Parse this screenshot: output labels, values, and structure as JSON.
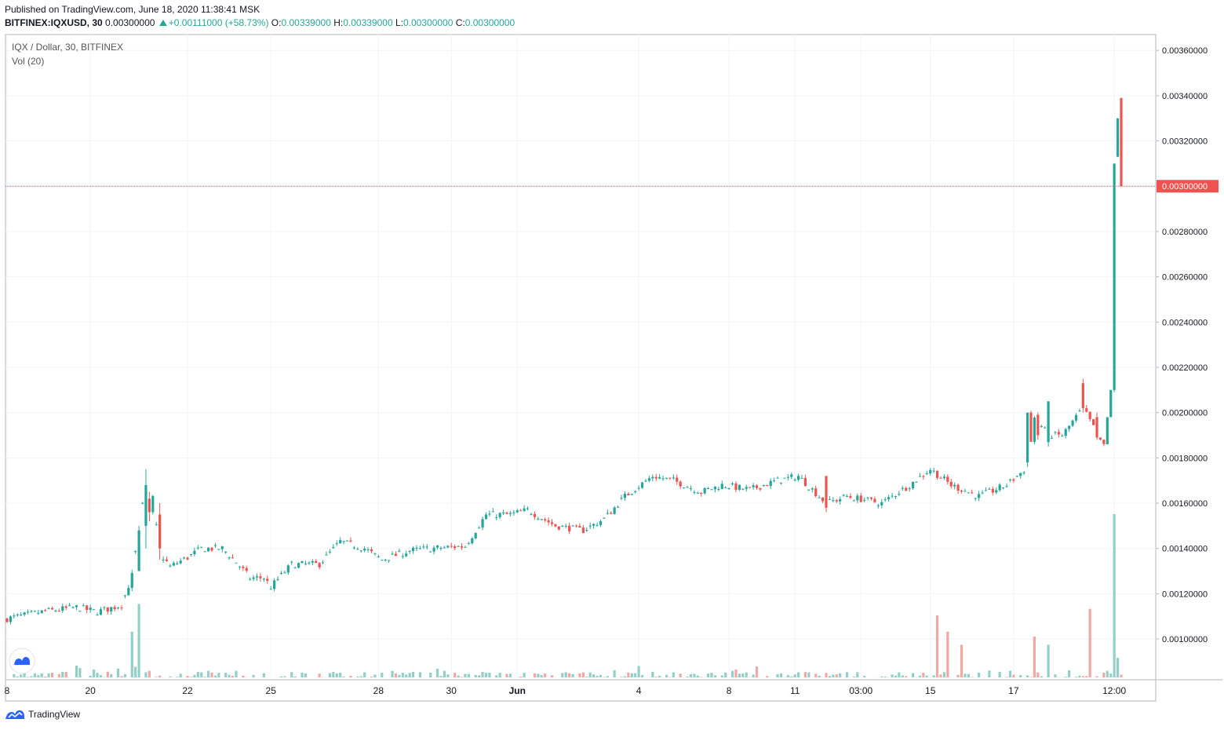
{
  "header": {
    "published": "Published on TradingView.com, June 18, 2020 11:38:41 MSK",
    "symbol": "BITFINEX:IQXUSD, 30",
    "last": "0.00300000",
    "change": "+0.00111000 (+58.73%)",
    "o_label": "O:",
    "o": "0.00339000",
    "h_label": "H:",
    "h": "0.00339000",
    "l_label": "L:",
    "l": "0.00300000",
    "c_label": "C:",
    "c": "0.00300000"
  },
  "legend": {
    "title": "IQX / Dollar, 30, BITFINEX",
    "volume": "Vol (20)"
  },
  "footer": {
    "brand": "TradingView"
  },
  "colors": {
    "up": "#26a69a",
    "down": "#ef5350",
    "up_vol": "#93cfc9",
    "down_vol": "#f3a7a5",
    "grid": "#f0f3fa",
    "axis": "#b2b5be",
    "price_line": "#ef5350"
  },
  "chart_data": {
    "type": "candlestick",
    "title": "IQX / Dollar, 30, BITFINEX",
    "y_axis_side": "right",
    "y_ticks": [
      0.001,
      0.0012,
      0.0014,
      0.0016,
      0.0018,
      0.002,
      0.0022,
      0.0024,
      0.0026,
      0.0028,
      0.003,
      0.0032,
      0.0034,
      0.0036
    ],
    "y_tick_labels": [
      "0.00100000",
      "0.00120000",
      "0.00140000",
      "0.00160000",
      "0.00180000",
      "0.00200000",
      "0.00220000",
      "0.00240000",
      "0.00260000",
      "0.00280000",
      "0.00300000",
      "0.00320000",
      "0.00340000",
      "0.00360000"
    ],
    "ylim": [
      0.00082,
      0.00367
    ],
    "last_price": 0.003,
    "last_price_label": "0.00300000",
    "x_tick_labels": [
      "8",
      "20",
      "22",
      "25",
      "28",
      "30",
      "Jun",
      "4",
      "8",
      "11",
      "03:00",
      "15",
      "17",
      "12:00"
    ],
    "x_tick_index": [
      0,
      24,
      52,
      76,
      107,
      128,
      147,
      182,
      208,
      227,
      246,
      266,
      290,
      319
    ],
    "n_bars": 322,
    "anchors": [
      [
        0,
        0.00109
      ],
      [
        10,
        0.00112
      ],
      [
        20,
        0.00114
      ],
      [
        26,
        0.00112
      ],
      [
        33,
        0.00115
      ],
      [
        36,
        0.00128
      ],
      [
        38,
        0.00148
      ],
      [
        40,
        0.0017
      ],
      [
        42,
        0.00162
      ],
      [
        44,
        0.00138
      ],
      [
        47,
        0.00132
      ],
      [
        52,
        0.00136
      ],
      [
        56,
        0.0014
      ],
      [
        62,
        0.0014
      ],
      [
        66,
        0.00134
      ],
      [
        70,
        0.00127
      ],
      [
        74,
        0.00127
      ],
      [
        76,
        0.00123
      ],
      [
        82,
        0.00133
      ],
      [
        90,
        0.00133
      ],
      [
        96,
        0.00143
      ],
      [
        103,
        0.0014
      ],
      [
        108,
        0.00135
      ],
      [
        116,
        0.00139
      ],
      [
        122,
        0.0014
      ],
      [
        132,
        0.00141
      ],
      [
        138,
        0.00155
      ],
      [
        145,
        0.00155
      ],
      [
        150,
        0.00157
      ],
      [
        158,
        0.0015
      ],
      [
        166,
        0.00148
      ],
      [
        172,
        0.00153
      ],
      [
        178,
        0.00163
      ],
      [
        186,
        0.00172
      ],
      [
        192,
        0.0017
      ],
      [
        200,
        0.00165
      ],
      [
        206,
        0.00168
      ],
      [
        214,
        0.00166
      ],
      [
        222,
        0.0017
      ],
      [
        228,
        0.00172
      ],
      [
        236,
        0.0016
      ],
      [
        242,
        0.00163
      ],
      [
        252,
        0.0016
      ],
      [
        260,
        0.00168
      ],
      [
        266,
        0.00175
      ],
      [
        272,
        0.00168
      ],
      [
        280,
        0.00163
      ],
      [
        288,
        0.00168
      ],
      [
        294,
        0.00176
      ],
      [
        296,
        0.00198
      ],
      [
        300,
        0.0019
      ],
      [
        304,
        0.0019
      ],
      [
        310,
        0.00202
      ],
      [
        316,
        0.00185
      ],
      [
        318,
        0.0021
      ],
      [
        319,
        0.00308
      ],
      [
        320,
        0.0033
      ],
      [
        321,
        0.003
      ]
    ],
    "special_bars": [
      {
        "i": 38,
        "o": 0.0013,
        "h": 0.0015,
        "l": 0.0013,
        "c": 0.00148
      },
      {
        "i": 40,
        "o": 0.0015,
        "h": 0.00175,
        "l": 0.0014,
        "c": 0.00168
      },
      {
        "i": 41,
        "o": 0.00162,
        "h": 0.00165,
        "l": 0.00152,
        "c": 0.00156
      },
      {
        "i": 44,
        "o": 0.00155,
        "h": 0.0016,
        "l": 0.00135,
        "c": 0.0014
      },
      {
        "i": 236,
        "o": 0.00172,
        "h": 0.00172,
        "l": 0.00156,
        "c": 0.00158
      },
      {
        "i": 294,
        "o": 0.00178,
        "h": 0.002,
        "l": 0.00176,
        "c": 0.002
      },
      {
        "i": 297,
        "o": 0.00199,
        "h": 0.002,
        "l": 0.00188,
        "c": 0.0019
      },
      {
        "i": 300,
        "o": 0.00187,
        "h": 0.00205,
        "l": 0.00185,
        "c": 0.00205
      },
      {
        "i": 310,
        "o": 0.00213,
        "h": 0.00215,
        "l": 0.002,
        "c": 0.00202
      },
      {
        "i": 314,
        "o": 0.00198,
        "h": 0.002,
        "l": 0.00188,
        "c": 0.00189
      },
      {
        "i": 317,
        "o": 0.00186,
        "h": 0.00198,
        "l": 0.00186,
        "c": 0.00198
      },
      {
        "i": 318,
        "o": 0.00198,
        "h": 0.0021,
        "l": 0.00198,
        "c": 0.0021
      },
      {
        "i": 319,
        "o": 0.0021,
        "h": 0.0031,
        "l": 0.00209,
        "c": 0.0031
      },
      {
        "i": 320,
        "o": 0.00313,
        "h": 0.0033,
        "l": 0.00313,
        "c": 0.0033
      },
      {
        "i": 321,
        "o": 0.00339,
        "h": 0.00339,
        "l": 0.003,
        "c": 0.003
      }
    ],
    "volume_spikes": [
      {
        "i": 38,
        "v": 0.45,
        "up": true
      },
      {
        "i": 36,
        "v": 0.28,
        "up": true
      },
      {
        "i": 296,
        "v": 0.25,
        "up": false
      },
      {
        "i": 300,
        "v": 0.2,
        "up": true
      },
      {
        "i": 312,
        "v": 0.42,
        "up": false
      },
      {
        "i": 319,
        "v": 1.0,
        "up": true
      },
      {
        "i": 320,
        "v": 0.12,
        "up": true
      },
      {
        "i": 275,
        "v": 0.2,
        "up": false
      },
      {
        "i": 268,
        "v": 0.38,
        "up": false
      },
      {
        "i": 271,
        "v": 0.28,
        "up": false
      }
    ]
  }
}
